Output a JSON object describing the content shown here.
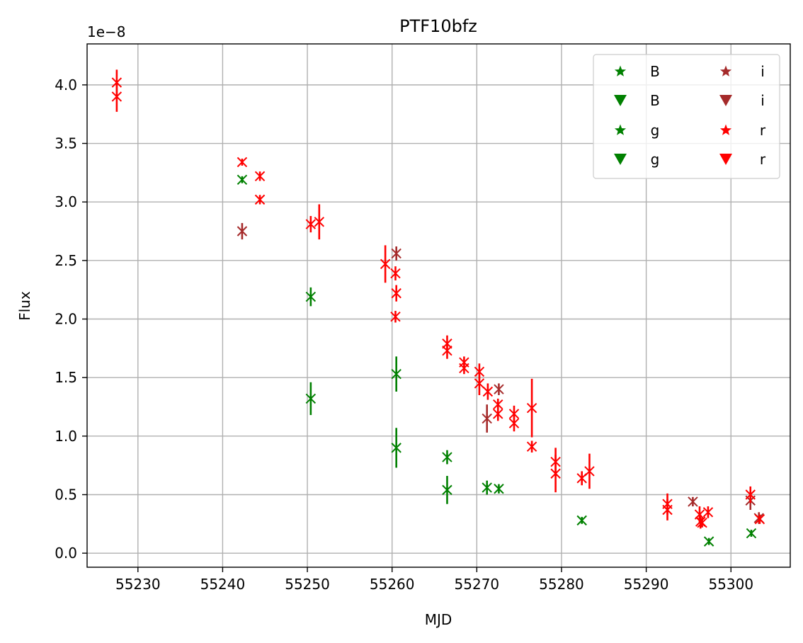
{
  "chart_data": {
    "type": "scatter",
    "title": "PTF10bfz",
    "xlabel": "MJD",
    "ylabel": "Flux",
    "y_offset_label": "1e−8",
    "xlim": [
      55224,
      55307
    ],
    "ylim": [
      -0.12,
      4.35
    ],
    "y_scale_factor": 1e-08,
    "xticks": [
      55230,
      55240,
      55250,
      55260,
      55270,
      55280,
      55290,
      55300
    ],
    "yticks": [
      0.0,
      0.5,
      1.0,
      1.5,
      2.0,
      2.5,
      3.0,
      3.5,
      4.0
    ],
    "ytick_labels": [
      "0.0",
      "0.5",
      "1.0",
      "1.5",
      "2.0",
      "2.5",
      "3.0",
      "3.5",
      "4.0"
    ],
    "grid": true,
    "legend_position": "top-right",
    "legend_columns": 2,
    "legend": [
      {
        "label": "B",
        "marker": "star",
        "color": "#008000"
      },
      {
        "label": "B",
        "marker": "triangle-down",
        "color": "#008000"
      },
      {
        "label": "g",
        "marker": "star",
        "color": "#008000"
      },
      {
        "label": "g",
        "marker": "triangle-down",
        "color": "#008000"
      },
      {
        "label": "i",
        "marker": "star",
        "color": "#a52a2a"
      },
      {
        "label": "i",
        "marker": "triangle-down",
        "color": "#a52a2a"
      },
      {
        "label": "r",
        "marker": "star",
        "color": "#ff0000"
      },
      {
        "label": "r",
        "marker": "triangle-down",
        "color": "#ff0000"
      }
    ],
    "series": [
      {
        "name": "g",
        "color": "#008000",
        "points": [
          {
            "x": 55242.3,
            "y": 3.19,
            "err": 0.03
          },
          {
            "x": 55250.4,
            "y": 2.19,
            "err": 0.08
          },
          {
            "x": 55250.4,
            "y": 1.32,
            "err": 0.14
          },
          {
            "x": 55260.5,
            "y": 1.53,
            "err": 0.15
          },
          {
            "x": 55260.5,
            "y": 0.9,
            "err": 0.17
          },
          {
            "x": 55266.5,
            "y": 0.82,
            "err": 0.06
          },
          {
            "x": 55266.5,
            "y": 0.54,
            "err": 0.12
          },
          {
            "x": 55271.2,
            "y": 0.56,
            "err": 0.06
          },
          {
            "x": 55272.6,
            "y": 0.55,
            "err": 0.04
          },
          {
            "x": 55282.4,
            "y": 0.28,
            "err": 0.03
          },
          {
            "x": 55297.4,
            "y": 0.1,
            "err": 0.03
          },
          {
            "x": 55302.4,
            "y": 0.17,
            "err": 0.03
          }
        ]
      },
      {
        "name": "i",
        "color": "#a52a2a",
        "points": [
          {
            "x": 55242.3,
            "y": 2.75,
            "err": 0.07
          },
          {
            "x": 55260.5,
            "y": 2.56,
            "err": 0.06
          },
          {
            "x": 55271.2,
            "y": 1.15,
            "err": 0.12
          },
          {
            "x": 55272.6,
            "y": 1.4,
            "err": 0.05
          },
          {
            "x": 55295.5,
            "y": 0.44,
            "err": 0.04
          },
          {
            "x": 55302.3,
            "y": 0.45,
            "err": 0.08
          },
          {
            "x": 55303.3,
            "y": 0.3,
            "err": 0.05
          }
        ]
      },
      {
        "name": "r",
        "color": "#ff0000",
        "points": [
          {
            "x": 55227.5,
            "y": 4.02,
            "err": 0.11
          },
          {
            "x": 55227.5,
            "y": 3.9,
            "err": 0.13
          },
          {
            "x": 55242.3,
            "y": 3.34,
            "err": 0.03
          },
          {
            "x": 55244.4,
            "y": 3.22,
            "err": 0.04
          },
          {
            "x": 55244.4,
            "y": 3.02,
            "err": 0.04
          },
          {
            "x": 55250.4,
            "y": 2.81,
            "err": 0.07
          },
          {
            "x": 55251.4,
            "y": 2.83,
            "err": 0.15
          },
          {
            "x": 55259.2,
            "y": 2.47,
            "err": 0.16
          },
          {
            "x": 55260.4,
            "y": 2.39,
            "err": 0.06
          },
          {
            "x": 55260.5,
            "y": 2.22,
            "err": 0.07
          },
          {
            "x": 55260.4,
            "y": 2.02,
            "err": 0.05
          },
          {
            "x": 55266.5,
            "y": 1.79,
            "err": 0.07
          },
          {
            "x": 55266.5,
            "y": 1.73,
            "err": 0.07
          },
          {
            "x": 55268.5,
            "y": 1.63,
            "err": 0.05
          },
          {
            "x": 55268.5,
            "y": 1.58,
            "err": 0.05
          },
          {
            "x": 55270.3,
            "y": 1.55,
            "err": 0.07
          },
          {
            "x": 55270.3,
            "y": 1.45,
            "err": 0.1
          },
          {
            "x": 55271.3,
            "y": 1.38,
            "err": 0.07
          },
          {
            "x": 55272.5,
            "y": 1.27,
            "err": 0.05
          },
          {
            "x": 55272.5,
            "y": 1.19,
            "err": 0.06
          },
          {
            "x": 55274.4,
            "y": 1.19,
            "err": 0.07
          },
          {
            "x": 55274.4,
            "y": 1.11,
            "err": 0.07
          },
          {
            "x": 55276.5,
            "y": 1.24,
            "err": 0.25
          },
          {
            "x": 55276.5,
            "y": 0.91,
            "err": 0.05
          },
          {
            "x": 55279.3,
            "y": 0.78,
            "err": 0.12
          },
          {
            "x": 55279.3,
            "y": 0.68,
            "err": 0.16
          },
          {
            "x": 55282.4,
            "y": 0.64,
            "err": 0.06
          },
          {
            "x": 55283.3,
            "y": 0.7,
            "err": 0.15
          },
          {
            "x": 55292.5,
            "y": 0.42,
            "err": 0.09
          },
          {
            "x": 55292.5,
            "y": 0.37,
            "err": 0.09
          },
          {
            "x": 55296.3,
            "y": 0.33,
            "err": 0.07
          },
          {
            "x": 55296.4,
            "y": 0.27,
            "err": 0.06
          },
          {
            "x": 55296.6,
            "y": 0.26,
            "err": 0.04
          },
          {
            "x": 55297.3,
            "y": 0.35,
            "err": 0.05
          },
          {
            "x": 55302.3,
            "y": 0.5,
            "err": 0.07
          },
          {
            "x": 55303.4,
            "y": 0.29,
            "err": 0.04
          }
        ]
      }
    ]
  }
}
